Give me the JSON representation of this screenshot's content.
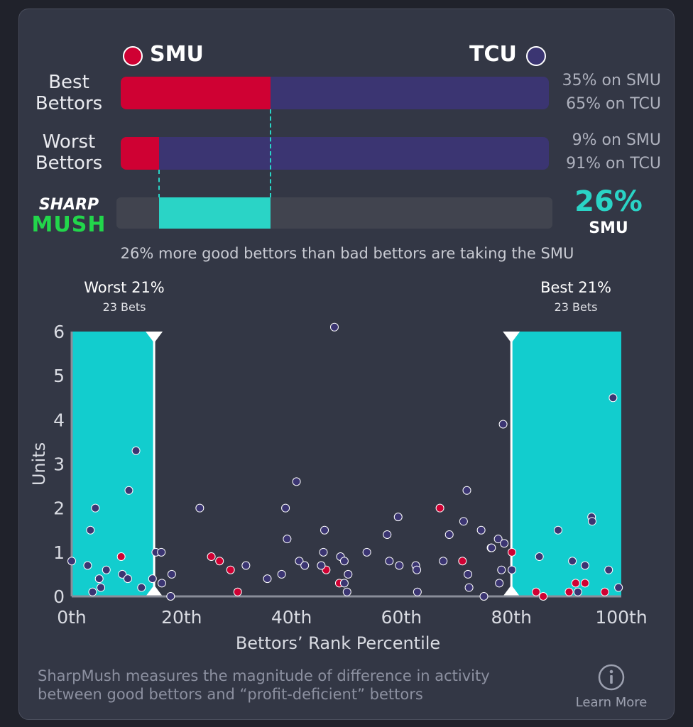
{
  "header": {
    "team_left": "SMU",
    "team_right": "TCU",
    "team_left_color": "#cf0133",
    "team_right_color": "#3b3572"
  },
  "rows": [
    {
      "label_1": "Best",
      "label_2": "Bettors",
      "smu_pct": 35,
      "tcu_pct": 65,
      "smu_text": "35% on SMU",
      "tcu_text": "65% on TCU"
    },
    {
      "label_1": "Worst",
      "label_2": "Bettors",
      "smu_pct": 9,
      "tcu_pct": 91,
      "smu_text": "9% on SMU",
      "tcu_text": "91% on TCU"
    }
  ],
  "sharpmush": {
    "logo_top": "SHARP",
    "logo_bottom": "MUSH",
    "value_text": "26%",
    "team": "SMU",
    "accent": "#2ad4c6",
    "caption": "26% more good bettors than bad bettors are taking the SMU"
  },
  "zones": {
    "worst_title": "Worst 21%",
    "worst_sub": "23 Bets",
    "best_title": "Best 21%",
    "best_sub": "23 Bets"
  },
  "chart_data": {
    "type": "scatter",
    "xlabel": "Bettors’ Rank Percentile",
    "ylabel": "Units",
    "xlim": [
      0,
      100
    ],
    "ylim": [
      0,
      6
    ],
    "x_ticks": [
      "0th",
      "20th",
      "40th",
      "60th",
      "80th",
      "100th"
    ],
    "y_ticks": [
      "0",
      "1",
      "2",
      "3",
      "4",
      "5",
      "6"
    ],
    "shaded_ranges": [
      [
        0,
        15
      ],
      [
        80,
        100
      ]
    ],
    "zone_color": "#12cdce",
    "series": [
      {
        "name": "SMU",
        "color": "#cf0133",
        "points": [
          [
            9,
            0.9
          ],
          [
            25.4,
            0.9
          ],
          [
            26.9,
            0.8
          ],
          [
            28.9,
            0.6
          ],
          [
            30.2,
            0.1
          ],
          [
            46.3,
            0.6
          ],
          [
            48.7,
            0.3
          ],
          [
            67,
            2
          ],
          [
            71.1,
            0.8
          ],
          [
            76.3,
            1.1
          ],
          [
            80.1,
            1
          ],
          [
            84.5,
            0.1
          ],
          [
            85.8,
            0
          ],
          [
            90.5,
            0.1
          ],
          [
            91.7,
            0.3
          ],
          [
            93.4,
            0.3
          ],
          [
            97,
            0.1
          ]
        ]
      },
      {
        "name": "TCU",
        "color": "#3b3572",
        "points": [
          [
            0,
            0.8
          ],
          [
            2.9,
            0.7
          ],
          [
            3.4,
            1.5
          ],
          [
            3.8,
            0.1
          ],
          [
            4.3,
            2
          ],
          [
            5,
            0.4
          ],
          [
            5.3,
            0.2
          ],
          [
            6.3,
            0.6
          ],
          [
            9.2,
            0.5
          ],
          [
            10.2,
            0.4
          ],
          [
            10.4,
            2.4
          ],
          [
            11.7,
            3.3
          ],
          [
            12.7,
            0.2
          ],
          [
            14.7,
            0.4
          ],
          [
            15.3,
            1
          ],
          [
            16.3,
            1
          ],
          [
            16.4,
            0.3
          ],
          [
            18,
            0
          ],
          [
            18.2,
            0.5
          ],
          [
            23.3,
            2
          ],
          [
            31.7,
            0.7
          ],
          [
            35.6,
            0.4
          ],
          [
            38.2,
            0.5
          ],
          [
            38.9,
            2
          ],
          [
            39.2,
            1.3
          ],
          [
            40.9,
            2.6
          ],
          [
            41.4,
            0.8
          ],
          [
            42.4,
            0.7
          ],
          [
            45.4,
            0.7
          ],
          [
            45.8,
            1
          ],
          [
            46,
            1.5
          ],
          [
            47.8,
            6.1
          ],
          [
            48.9,
            0.9
          ],
          [
            49.6,
            0.3
          ],
          [
            49.6,
            0.8
          ],
          [
            50.1,
            0.1
          ],
          [
            50.3,
            0.5
          ],
          [
            53.7,
            1
          ],
          [
            57.4,
            1.4
          ],
          [
            57.8,
            0.8
          ],
          [
            59.4,
            1.8
          ],
          [
            59.6,
            0.7
          ],
          [
            62.6,
            0.7
          ],
          [
            62.8,
            0.6
          ],
          [
            62.9,
            0.1
          ],
          [
            67.6,
            0.8
          ],
          [
            68.7,
            1.4
          ],
          [
            71.3,
            1.7
          ],
          [
            71.9,
            2.4
          ],
          [
            72.1,
            0.5
          ],
          [
            72.3,
            0.2
          ],
          [
            74.5,
            1.5
          ],
          [
            75,
            0
          ],
          [
            76.4,
            1.1
          ],
          [
            77.6,
            1.3
          ],
          [
            77.8,
            0.3
          ],
          [
            78.2,
            0.6
          ],
          [
            78.5,
            3.9
          ],
          [
            78.7,
            1.2
          ],
          [
            80.1,
            0.6
          ],
          [
            85.1,
            0.9
          ],
          [
            88.5,
            1.5
          ],
          [
            91.1,
            0.8
          ],
          [
            92.1,
            0.1
          ],
          [
            93.4,
            0.7
          ],
          [
            94.6,
            1.8
          ],
          [
            94.7,
            1.7
          ],
          [
            97.7,
            0.6
          ],
          [
            98.5,
            4.5
          ],
          [
            99.5,
            0.2
          ]
        ]
      }
    ]
  },
  "footer": {
    "text_line1": "SharpMush measures the magnitude of difference in activity",
    "text_line2": "between good bettors and “profit-deficient” bettors",
    "learn_more": "Learn More"
  }
}
